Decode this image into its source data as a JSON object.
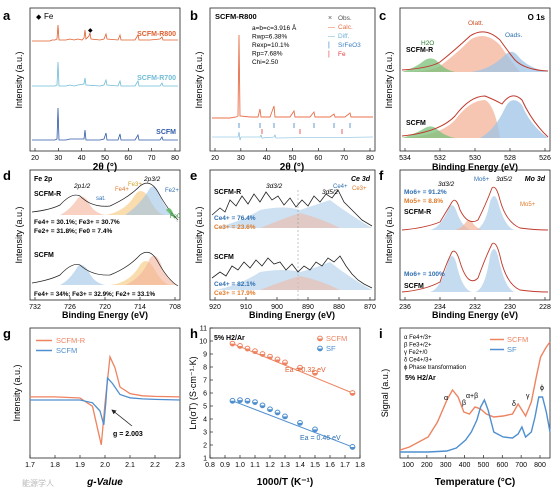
{
  "figure": {
    "watermark": "能源学人"
  },
  "panels": {
    "a": {
      "letter": "a",
      "ylabel": "Intensity (a.u.)",
      "xlabel": "2θ (°)",
      "xticks": [
        "20",
        "30",
        "40",
        "50",
        "60",
        "70",
        "80"
      ],
      "legend_fe": "Fe",
      "series": [
        {
          "name": "SCFM-R800",
          "color": "#e0602f"
        },
        {
          "name": "SCFM-R700",
          "color": "#6fbcd6"
        },
        {
          "name": "SCFM",
          "color": "#2f5aa8"
        }
      ]
    },
    "b": {
      "letter": "b",
      "title": "SCFM-R800",
      "ylabel": "Intensity (a.u.)",
      "xlabel": "2θ (°)",
      "xticks": [
        "20",
        "30",
        "40",
        "50",
        "60",
        "70",
        "80"
      ],
      "fit": [
        "a=b=c=3.916 Å",
        "Rwp=6.38%",
        "Rexp=10.1%",
        "Rp=7.68%",
        "Chi=2.50"
      ],
      "legend": [
        {
          "label": "Obs.",
          "color": "#555555",
          "symbol": "×"
        },
        {
          "label": "Calc.",
          "color": "#e8704a",
          "symbol": "—"
        },
        {
          "label": "Diff.",
          "color": "#6fb1d8",
          "symbol": "—"
        },
        {
          "label": "SrFeO3",
          "color": "#3a7fc2",
          "symbol": "|"
        },
        {
          "label": "Fe",
          "color": "#e03a3a",
          "symbol": "|"
        }
      ]
    },
    "c": {
      "letter": "c",
      "title": "O 1s",
      "ylabel": "Intensity (a.u.)",
      "xlabel": "Binding Energy (eV)",
      "xticks": [
        "534",
        "532",
        "530",
        "528",
        "526"
      ],
      "peaks": [
        "H2O",
        "Oads.",
        "Olatt."
      ],
      "samples": [
        "SCFM-R",
        "SCFM"
      ]
    },
    "d": {
      "letter": "d",
      "title": "Fe 2p",
      "ylabel": "Intensity (a.u.)",
      "xlabel": "Binding Energy (eV)",
      "xticks": [
        "732",
        "726",
        "720",
        "714",
        "708"
      ],
      "labels": [
        "2p1/2",
        "2p3/2",
        "sat.",
        "Fe4+",
        "Fe3+",
        "Fe2+",
        "Fe0"
      ],
      "samples": [
        "SCFM-R",
        "SCFM"
      ],
      "composition_r": [
        "Fe4+ = 30.1%; Fe3+ = 30.7%",
        "Fe2+ = 31.8%; Fe0 = 7.4%"
      ],
      "composition_scfm": [
        "Fe4+ = 34%; Fe3+ = 32.9%; Fe2+ = 33.1%"
      ]
    },
    "e": {
      "letter": "e",
      "title": "Ce 3d",
      "ylabel": "Intensity (a.u.)",
      "xlabel": "Binding Energy (eV)",
      "xticks": [
        "920",
        "910",
        "900",
        "890",
        "880",
        "870"
      ],
      "labels": [
        "3d3/2",
        "3d5/2",
        "Ce4+",
        "Ce3+"
      ],
      "samples": [
        "SCFM-R",
        "SCFM"
      ],
      "composition_r": [
        "Ce4+ = 76.4%",
        "Ce3+ = 23.6%"
      ],
      "composition_scfm": [
        "Ce4+ = 82.1%",
        "Ce3+ = 17.9%"
      ]
    },
    "f": {
      "letter": "f",
      "title": "Mo 3d",
      "ylabel": "Intensity (a.u.)",
      "xlabel": "Binding Energy (eV)",
      "xticks": [
        "236",
        "234",
        "232",
        "230",
        "228"
      ],
      "labels": [
        "3d3/2",
        "3d5/2",
        "Mo6+",
        "Mo5+"
      ],
      "samples": [
        "SCFM-R",
        "SCFM"
      ],
      "composition_r": [
        "Mo6+ = 91.2%",
        "Mo5+ = 8.8%"
      ],
      "composition_scfm": [
        "Mo6+ = 100%"
      ]
    },
    "g": {
      "letter": "g",
      "ylabel": "Intensity (a.u.)",
      "xlabel": "g-Value",
      "xticks": [
        "1.7",
        "1.8",
        "1.9",
        "2.0",
        "2.1",
        "2.2",
        "2.3"
      ],
      "annotation": "g = 2.003",
      "legend": [
        {
          "label": "SCFM-R",
          "color": "#ee8360"
        },
        {
          "label": "SCFM",
          "color": "#4f8fcf"
        }
      ]
    },
    "h": {
      "letter": "h",
      "ylabel": "Ln(σT) (S·cm⁻¹·K)",
      "xlabel": "1000/T (K⁻¹)",
      "xticks": [
        "0.8",
        "0.9",
        "1.0",
        "1.1",
        "1.2",
        "1.3",
        "1.4",
        "1.5",
        "1.6",
        "1.7",
        "1.8"
      ],
      "yticks": [
        "1",
        "2",
        "3",
        "4",
        "5",
        "6",
        "7",
        "8",
        "9",
        "10",
        "11"
      ],
      "atmosphere": "5% H2/Ar",
      "ea_r": "Ea = 0.32 eV",
      "ea_s": "Ea = 0.46 eV",
      "legend": [
        {
          "label": "SCFM",
          "color": "#ee8360"
        },
        {
          "label": "SF",
          "color": "#4f8fcf"
        }
      ]
    },
    "i": {
      "letter": "i",
      "ylabel": "Signal (a.u.)",
      "xlabel": "Temperature (°C)",
      "xticks": [
        "100",
        "200",
        "300",
        "400",
        "500",
        "600",
        "700",
        "800"
      ],
      "atmosphere": "5% H2/Ar",
      "key": [
        "α Fe4+/3+",
        "β Fe3+/2+",
        "γ Fe2+/0",
        "δ Ce4+/3+",
        "ϕ Phase transformation"
      ],
      "peaks": [
        "α",
        "β",
        "α+β",
        "δ",
        "γ",
        "ϕ"
      ],
      "legend": [
        {
          "label": "SCFM",
          "color": "#ee8360"
        },
        {
          "label": "SF",
          "color": "#4f8fcf"
        }
      ]
    }
  },
  "chart_data": [
    {
      "panel": "h",
      "type": "scatter",
      "xlabel": "1000/T (K⁻¹)",
      "ylabel": "Ln(σT) (S·cm⁻¹·K)",
      "xlim": [
        0.8,
        1.8
      ],
      "ylim": [
        1,
        11
      ],
      "series": [
        {
          "name": "SCFM",
          "x": [
            0.95,
            1.0,
            1.05,
            1.1,
            1.15,
            1.2,
            1.25,
            1.3,
            1.4,
            1.5,
            1.75
          ],
          "y": [
            9.8,
            9.62,
            9.42,
            9.22,
            9.0,
            8.8,
            8.58,
            8.35,
            7.95,
            7.55,
            6.0
          ]
        },
        {
          "name": "SF",
          "x": [
            0.95,
            1.0,
            1.05,
            1.1,
            1.15,
            1.2,
            1.25,
            1.3,
            1.4,
            1.5,
            1.75
          ],
          "y": [
            5.4,
            5.45,
            5.4,
            5.3,
            5.05,
            4.75,
            4.5,
            4.2,
            3.7,
            3.2,
            1.85
          ]
        }
      ]
    },
    {
      "panel": "i",
      "type": "line",
      "xlabel": "Temperature (°C)",
      "ylabel": "Signal (a.u.)",
      "xlim": [
        50,
        850
      ],
      "series": [
        {
          "name": "SCFM",
          "x": [
            50,
            100,
            200,
            250,
            300,
            330,
            360,
            390,
            420,
            450,
            480,
            510,
            550,
            600,
            650,
            680,
            700,
            720,
            750,
            780,
            800,
            830,
            850
          ],
          "y": [
            0.02,
            0.05,
            0.15,
            0.3,
            0.52,
            0.62,
            0.55,
            0.4,
            0.38,
            0.45,
            0.43,
            0.38,
            0.35,
            0.36,
            0.38,
            0.48,
            0.42,
            0.36,
            0.5,
            0.78,
            0.95,
            1.05,
            1.1
          ]
        },
        {
          "name": "SF",
          "x": [
            50,
            100,
            200,
            300,
            350,
            400,
            430,
            460,
            480,
            500,
            520,
            550,
            600,
            650,
            680,
            700,
            720,
            750,
            770,
            790,
            810,
            830,
            850
          ],
          "y": [
            0.0,
            0.0,
            0.0,
            0.01,
            0.04,
            0.12,
            0.2,
            0.32,
            0.45,
            0.52,
            0.42,
            0.2,
            0.15,
            0.14,
            0.18,
            0.25,
            0.15,
            0.2,
            0.35,
            0.55,
            0.55,
            0.4,
            0.2
          ]
        }
      ]
    },
    {
      "panel": "g",
      "type": "line",
      "xlabel": "g-Value",
      "ylabel": "Intensity (a.u.)",
      "xlim": [
        1.7,
        2.3
      ],
      "series": [
        {
          "name": "SCFM-R",
          "x": [
            1.7,
            1.8,
            1.9,
            1.95,
            1.97,
            1.985,
            2.0,
            2.02,
            2.04,
            2.06,
            2.1,
            2.15,
            2.2,
            2.3
          ],
          "y": [
            0.02,
            0.02,
            0.0,
            -0.15,
            -0.55,
            -0.85,
            -0.1,
            0.75,
            0.55,
            0.2,
            0.08,
            0.04,
            0.03,
            0.02
          ]
        },
        {
          "name": "SCFM",
          "x": [
            1.7,
            1.8,
            1.9,
            1.95,
            1.98,
            1.995,
            2.003,
            2.01,
            2.03,
            2.06,
            2.1,
            2.15,
            2.2,
            2.3
          ],
          "y": [
            0.0,
            0.0,
            0.0,
            -0.05,
            -0.2,
            -0.45,
            -0.05,
            0.4,
            0.3,
            0.1,
            0.04,
            0.02,
            0.01,
            0.0
          ]
        }
      ]
    }
  ]
}
